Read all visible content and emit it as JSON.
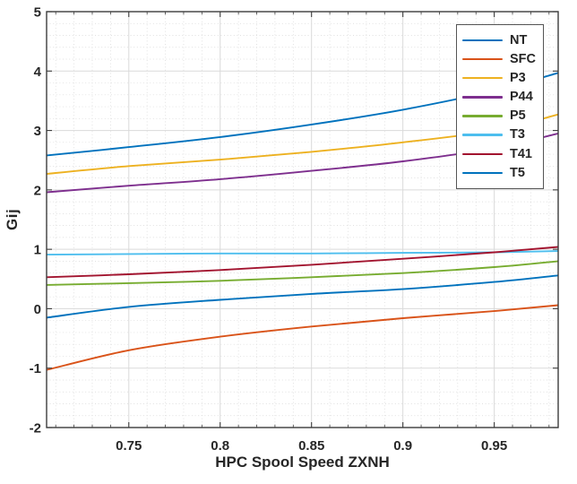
{
  "figure": {
    "background": "#ffffff",
    "axis_color": "#3c3c3c",
    "tick_label_color": "#262626",
    "grid_color": "#dadada",
    "minor_grid_color": "#c9c9c9",
    "legend_border_color": "#555555",
    "legend_background": "#ffffff"
  },
  "chart_data": {
    "type": "line",
    "title": "",
    "xlabel": "HPC Spool Speed ZXNH",
    "ylabel": "Gij",
    "xlim": [
      0.705,
      0.985
    ],
    "ylim": [
      -2,
      5
    ],
    "xticks": [
      0.75,
      0.8,
      0.85,
      0.9,
      0.95
    ],
    "xtick_labels": [
      "0.75",
      "0.8",
      "0.85",
      "0.9",
      "0.95"
    ],
    "yticks": [
      -2,
      -1,
      0,
      1,
      2,
      3,
      4,
      5
    ],
    "ytick_labels": [
      "-2",
      "-1",
      "0",
      "1",
      "2",
      "3",
      "4",
      "5"
    ],
    "x_minor_step": 0.01,
    "y_minor_step": 0.2,
    "grid": "major-solid-and-minor-dotted",
    "legend_position": "top-right",
    "x": [
      0.705,
      0.75,
      0.8,
      0.85,
      0.9,
      0.95,
      0.985
    ],
    "series": [
      {
        "name": "NT",
        "color": "#0072BD",
        "values": [
          2.58,
          2.72,
          2.89,
          3.1,
          3.35,
          3.67,
          3.97
        ]
      },
      {
        "name": "SFC",
        "color": "#D95319",
        "values": [
          -1.03,
          -0.7,
          -0.47,
          -0.3,
          -0.16,
          -0.04,
          0.06
        ]
      },
      {
        "name": "P3",
        "color": "#EDB120",
        "values": [
          2.27,
          2.4,
          2.51,
          2.64,
          2.8,
          3.0,
          3.27
        ]
      },
      {
        "name": "P44",
        "color": "#7E2F8E",
        "values": [
          1.96,
          2.07,
          2.18,
          2.32,
          2.48,
          2.7,
          2.95
        ]
      },
      {
        "name": "P5",
        "color": "#77AC30",
        "values": [
          0.4,
          0.43,
          0.47,
          0.53,
          0.6,
          0.7,
          0.8
        ]
      },
      {
        "name": "T3",
        "color": "#4DBEEE",
        "values": [
          0.91,
          0.92,
          0.93,
          0.93,
          0.94,
          0.95,
          0.97
        ]
      },
      {
        "name": "T41",
        "color": "#A2142F",
        "values": [
          0.53,
          0.58,
          0.65,
          0.74,
          0.84,
          0.95,
          1.04
        ]
      },
      {
        "name": "T5",
        "color": "#0072BD",
        "values": [
          -0.15,
          0.03,
          0.15,
          0.25,
          0.33,
          0.45,
          0.56
        ]
      }
    ]
  }
}
